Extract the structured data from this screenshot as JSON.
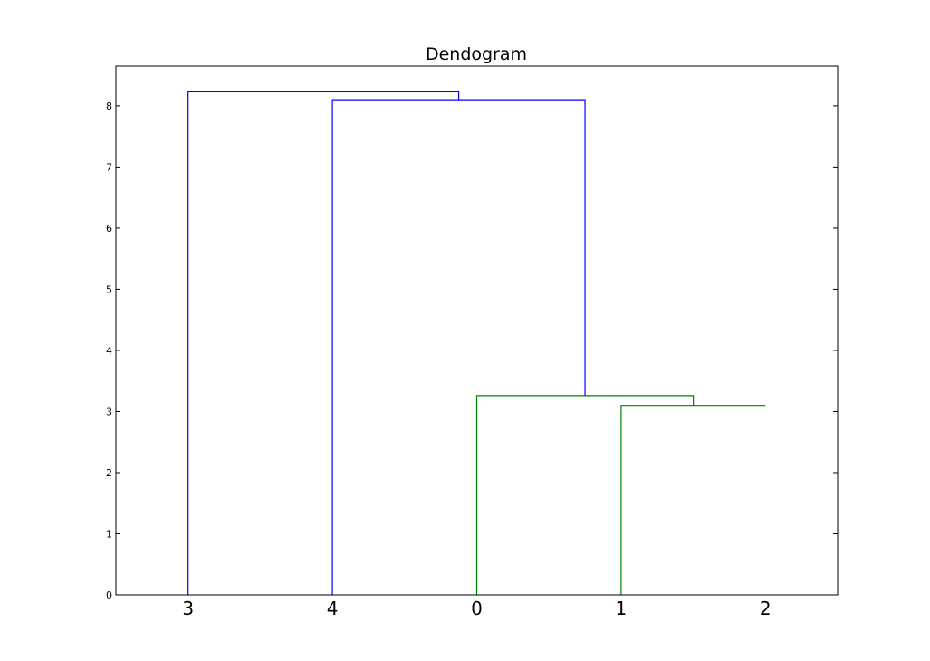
{
  "chart_data": {
    "type": "dendrogram",
    "title": "Dendogram",
    "xlabel": "",
    "ylabel": "",
    "leaf_order": [
      "3",
      "4",
      "0",
      "1",
      "2"
    ],
    "ylim": [
      0,
      8.65
    ],
    "y_ticks": [
      0,
      1,
      2,
      3,
      4,
      5,
      6,
      7,
      8
    ],
    "grid": false,
    "links": [
      {
        "left_leaf_positions": [
          3,
          4
        ],
        "heights": [
          0,
          3.1
        ],
        "merge_height": 3.1,
        "color": "#008000"
      },
      {
        "left_leaf_positions": [
          2,
          3.5
        ],
        "heights": [
          0,
          3.1
        ],
        "merge_height": 3.26,
        "color": "#008000"
      },
      {
        "left_leaf_positions": [
          1,
          2.75
        ],
        "heights": [
          0,
          3.26
        ],
        "merge_height": 8.1,
        "color": "#0000ff"
      },
      {
        "left_leaf_positions": [
          0,
          1.875
        ],
        "heights": [
          0,
          8.1
        ],
        "merge_height": 8.23,
        "color": "#0000ff"
      }
    ]
  }
}
